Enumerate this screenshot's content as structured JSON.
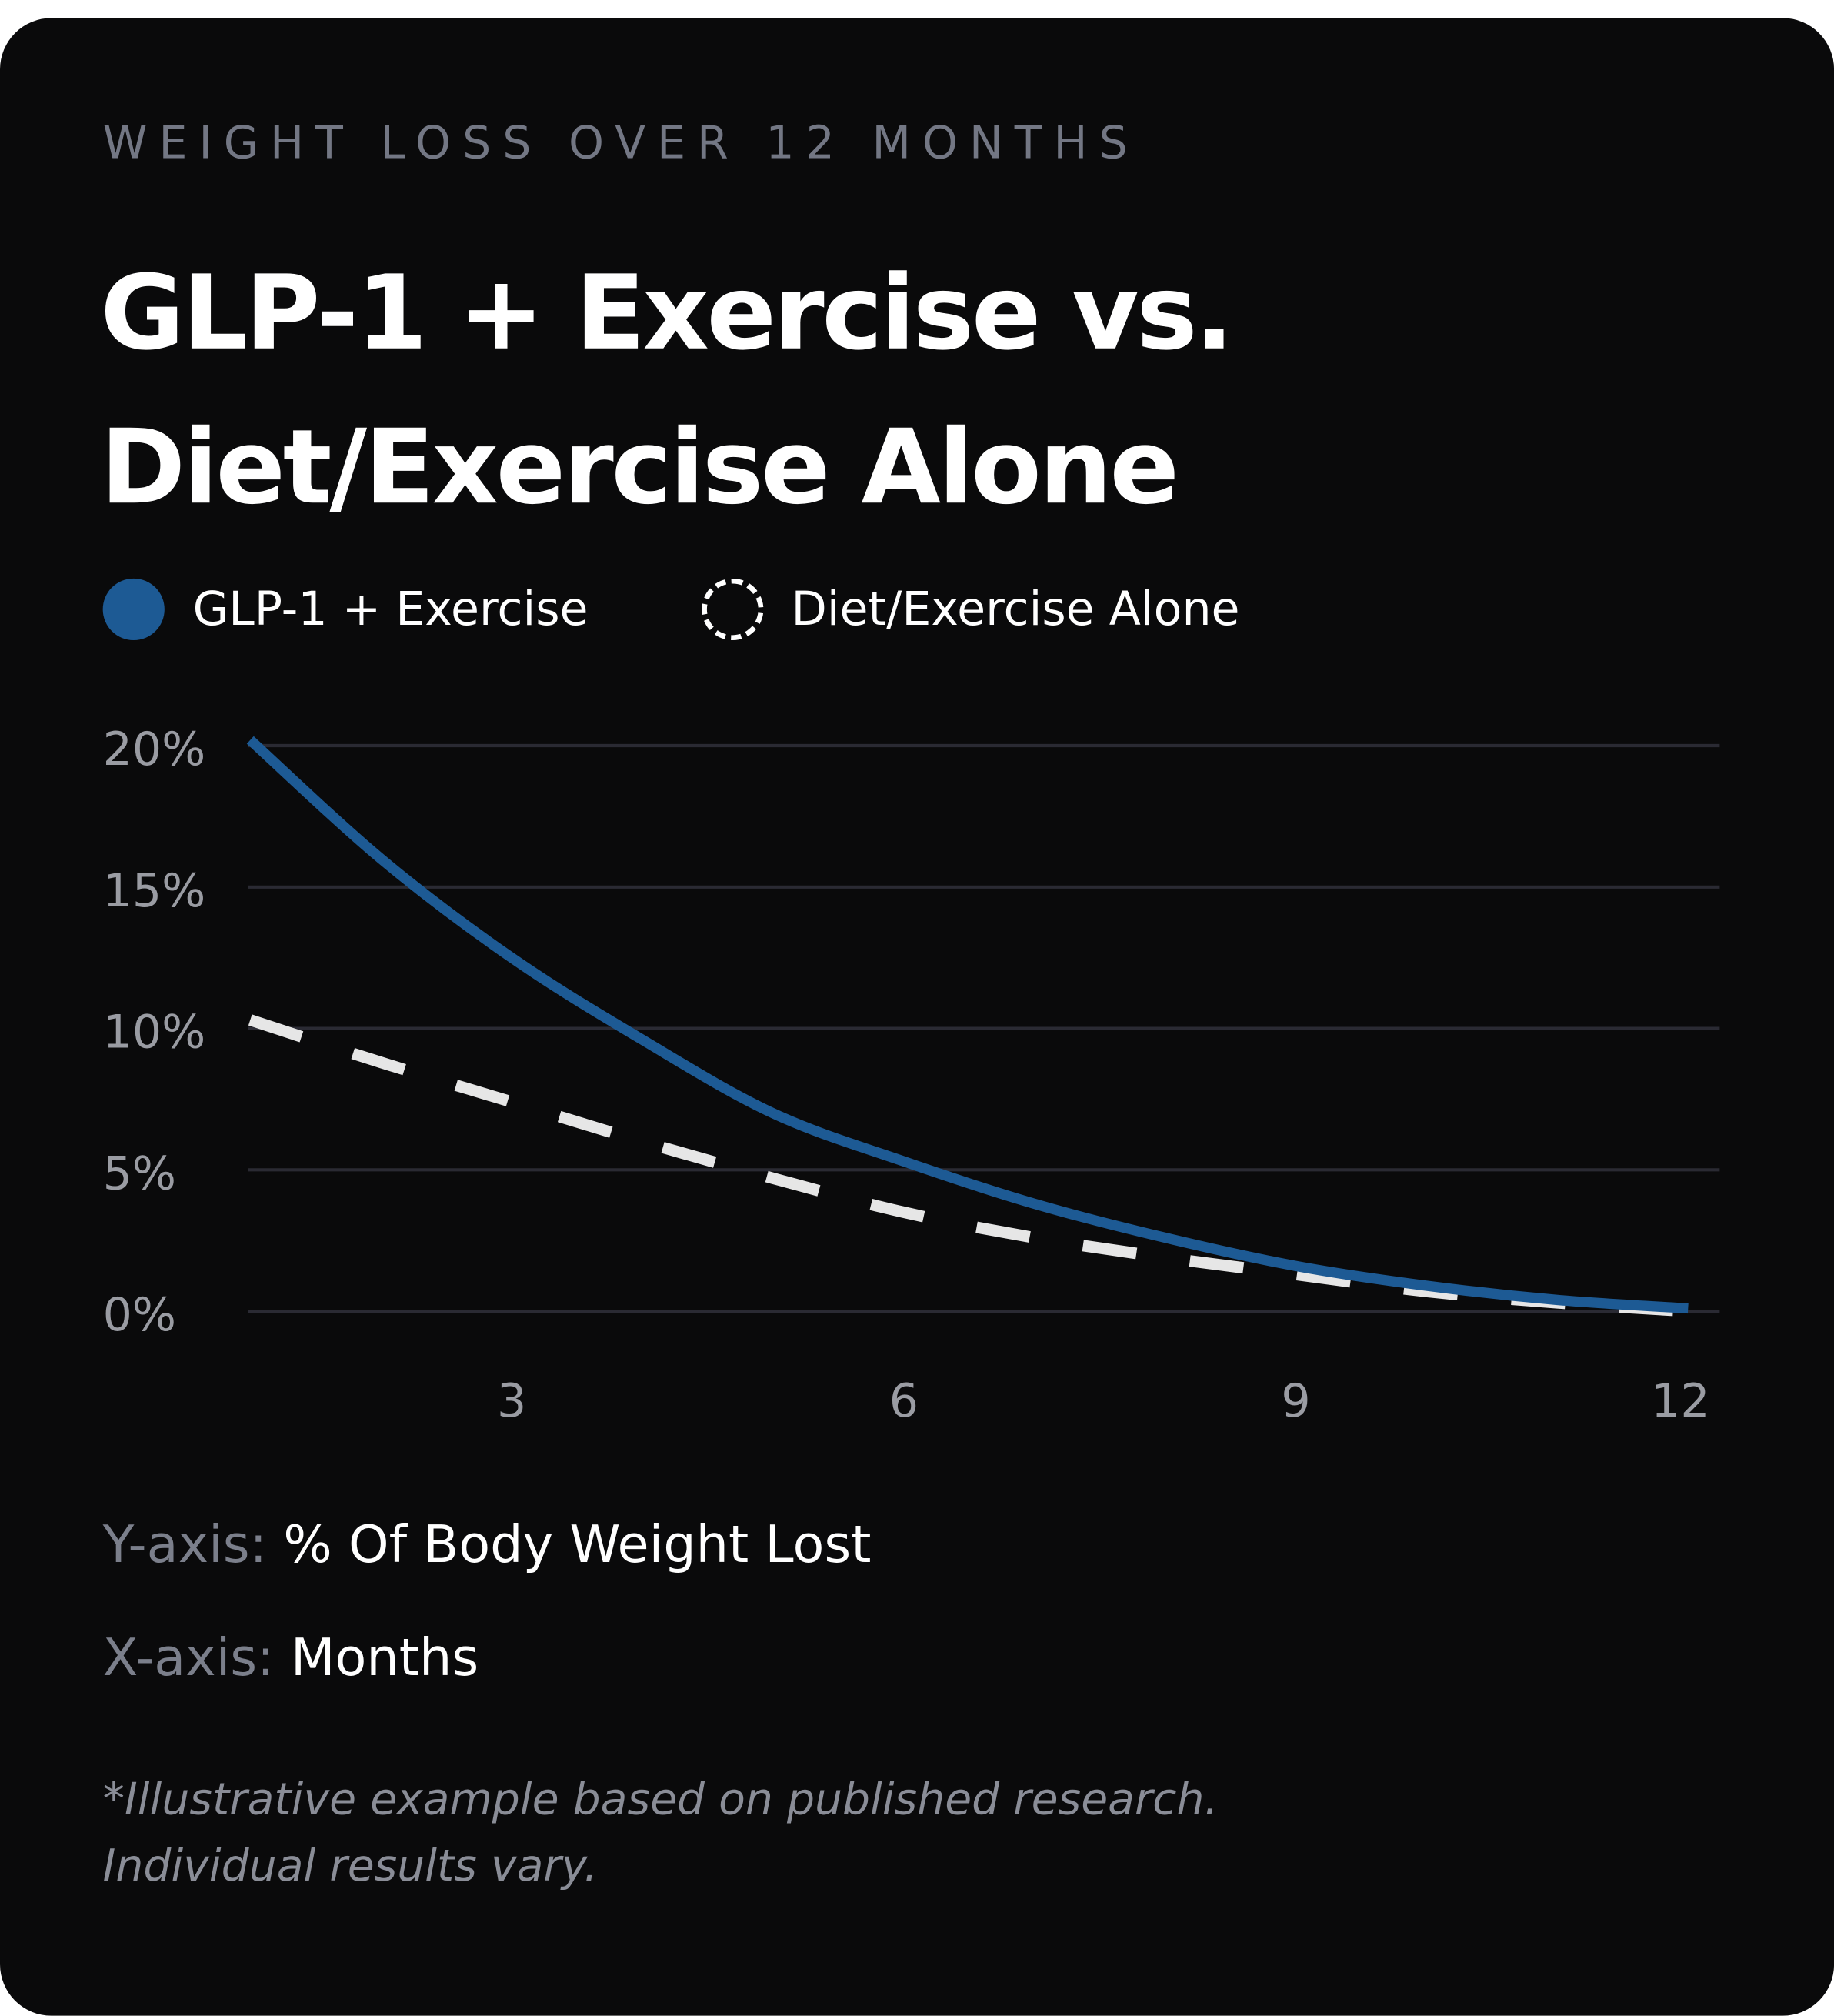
{
  "eyebrow": "WEIGHT LOSS OVER 12 MONTHS",
  "title_line1": "GLP-1 + Exercise vs.",
  "title_line2": "Diet/Exercise Alone",
  "colors": {
    "background": "#0a0a0b",
    "glp1": "#1d5a94",
    "diet": "#e6e6e6",
    "grid": "#2a2a33"
  },
  "chart_data": {
    "type": "line",
    "x": [
      1,
      2,
      3,
      4,
      5,
      6,
      7,
      8,
      9,
      10,
      11,
      12
    ],
    "series": [
      {
        "name": "GLP-1 + Exercise",
        "style": "solid",
        "values": [
          20.2,
          16.0,
          12.5,
          9.6,
          7.0,
          5.3,
          3.8,
          2.6,
          1.6,
          0.9,
          0.4,
          0.1
        ]
      },
      {
        "name": "Diet/Exercise Alone",
        "style": "dashed",
        "values": [
          10.3,
          8.8,
          7.4,
          6.0,
          4.7,
          3.5,
          2.6,
          1.9,
          1.3,
          0.7,
          0.3,
          0.0
        ]
      }
    ],
    "y_ticks": [
      "20%",
      "15%",
      "10%",
      "5%",
      "0%"
    ],
    "y_tick_values": [
      20,
      15,
      10,
      5,
      0
    ],
    "x_ticks": [
      "3",
      "6",
      "9",
      "12"
    ],
    "x_tick_values": [
      3,
      6,
      9,
      12
    ],
    "xlim": [
      1,
      12.2
    ],
    "ylim": [
      0,
      20
    ],
    "grid": "horizontal",
    "legend": "top-left",
    "ylabel_key": "Y-axis:",
    "ylabel": "% Of Body Weight Lost",
    "xlabel_key": "X-axis:",
    "xlabel": "Months"
  },
  "footnote_line1": "*Illustrative example based on published research.",
  "footnote_line2": "Individual results vary."
}
